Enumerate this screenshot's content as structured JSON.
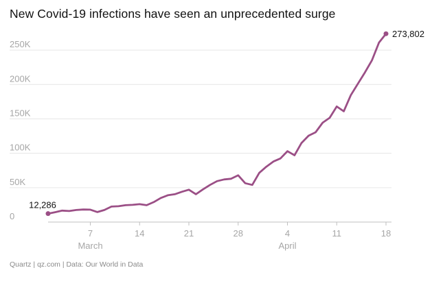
{
  "chart_data": {
    "type": "line",
    "title": "New Covid-19 infections have seen an unprecedented surge",
    "subtitle": "",
    "xlabel": "",
    "ylabel": "",
    "series_color": "#9b4f86",
    "grid_color": "#e6e6e6",
    "axis_text_color": "#a6a6a6",
    "annotation_color": "#111111",
    "ylim": [
      0,
      275000
    ],
    "yticks": [
      {
        "value": 0,
        "label": "0"
      },
      {
        "value": 50000,
        "label": "50K"
      },
      {
        "value": 100000,
        "label": "100K"
      },
      {
        "value": 150000,
        "label": "150K"
      },
      {
        "value": 200000,
        "label": "200K"
      },
      {
        "value": 250000,
        "label": "250K"
      }
    ],
    "xlim": [
      1,
      49
    ],
    "xticks": [
      {
        "day": 7,
        "label": "7"
      },
      {
        "day": 14,
        "label": "14"
      },
      {
        "day": 21,
        "label": "21"
      },
      {
        "day": 28,
        "label": "28"
      },
      {
        "day": 35,
        "label": "4"
      },
      {
        "day": 42,
        "label": "11"
      },
      {
        "day": 49,
        "label": "18"
      }
    ],
    "month_labels": [
      {
        "day": 7,
        "label": "March"
      },
      {
        "day": 35,
        "label": "April"
      }
    ],
    "series": [
      {
        "name": "New Covid-19 infections",
        "x": [
          1,
          2,
          3,
          4,
          5,
          6,
          7,
          8,
          9,
          10,
          11,
          12,
          13,
          14,
          15,
          16,
          17,
          18,
          19,
          20,
          21,
          22,
          23,
          24,
          25,
          26,
          27,
          28,
          29,
          30,
          31,
          32,
          33,
          34,
          35,
          36,
          37,
          38,
          39,
          40,
          41,
          42,
          43,
          44,
          45,
          46,
          47,
          48,
          49
        ],
        "values": [
          12286,
          14300,
          16600,
          16000,
          17500,
          18200,
          18000,
          14500,
          17500,
          22500,
          23000,
          24500,
          25000,
          26000,
          24500,
          29000,
          35000,
          39000,
          40500,
          44000,
          47000,
          40500,
          47500,
          54000,
          59500,
          62000,
          63000,
          68000,
          56500,
          54000,
          71500,
          80500,
          88000,
          92500,
          103000,
          97000,
          115000,
          125500,
          130500,
          144500,
          151500,
          168000,
          161000,
          184500,
          201000,
          217500,
          235000,
          261000,
          273802
        ]
      }
    ],
    "annotations": [
      {
        "label": "12,286",
        "at": "start"
      },
      {
        "label": "273,802",
        "at": "end"
      }
    ],
    "grid": true,
    "legend": "none"
  },
  "footer": {
    "source_text": "Quartz | qz.com | Data: Our World in Data"
  }
}
